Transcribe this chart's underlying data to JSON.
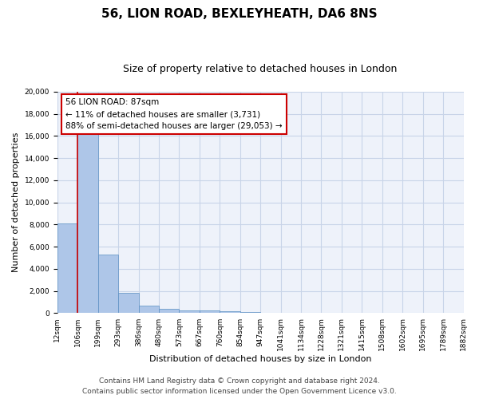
{
  "title1": "56, LION ROAD, BEXLEYHEATH, DA6 8NS",
  "title2": "Size of property relative to detached houses in London",
  "xlabel": "Distribution of detached houses by size in London",
  "ylabel": "Number of detached properties",
  "bar_values": [
    8100,
    16600,
    5300,
    1850,
    700,
    380,
    280,
    230,
    170,
    120,
    0,
    0,
    0,
    0,
    0,
    0,
    0,
    0,
    0,
    0
  ],
  "categories": [
    "12sqm",
    "106sqm",
    "199sqm",
    "293sqm",
    "386sqm",
    "480sqm",
    "573sqm",
    "667sqm",
    "760sqm",
    "854sqm",
    "947sqm",
    "1041sqm",
    "1134sqm",
    "1228sqm",
    "1321sqm",
    "1415sqm",
    "1508sqm",
    "1602sqm",
    "1695sqm",
    "1789sqm",
    "1882sqm"
  ],
  "bar_color": "#aec6e8",
  "bar_edge_color": "#5a8fc2",
  "grid_color": "#c8d4e8",
  "bg_color": "#eef2fa",
  "vline_x": 1.0,
  "vline_color": "#cc0000",
  "annotation_line1": "56 LION ROAD: 87sqm",
  "annotation_line2": "← 11% of detached houses are smaller (3,731)",
  "annotation_line3": "88% of semi-detached houses are larger (29,053) →",
  "annotation_box_color": "#ffffff",
  "annotation_edge_color": "#cc0000",
  "ylim": [
    0,
    20000
  ],
  "yticks": [
    0,
    2000,
    4000,
    6000,
    8000,
    10000,
    12000,
    14000,
    16000,
    18000,
    20000
  ],
  "footer1": "Contains HM Land Registry data © Crown copyright and database right 2024.",
  "footer2": "Contains public sector information licensed under the Open Government Licence v3.0.",
  "title1_fontsize": 11,
  "title2_fontsize": 9,
  "annotation_fontsize": 7.5,
  "tick_fontsize": 6.5,
  "ylabel_fontsize": 8,
  "xlabel_fontsize": 8,
  "footer_fontsize": 6.5
}
